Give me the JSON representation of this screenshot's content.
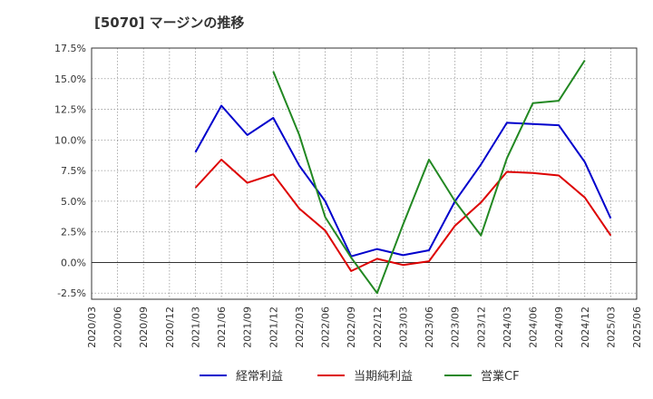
{
  "chart_data": {
    "type": "line",
    "title": "[5070]  マージンの推移",
    "xlabel": "",
    "ylabel": "",
    "x": [
      "2020/03",
      "2020/06",
      "2020/09",
      "2020/12",
      "2021/03",
      "2021/06",
      "2021/09",
      "2021/12",
      "2022/03",
      "2022/06",
      "2022/09",
      "2022/12",
      "2023/03",
      "2023/06",
      "2023/09",
      "2023/12",
      "2024/03",
      "2024/06",
      "2024/09",
      "2024/12",
      "2025/03",
      "2025/06"
    ],
    "y_tick_labels": [
      "17.5%",
      "15.0%",
      "12.5%",
      "10.0%",
      "7.5%",
      "5.0%",
      "2.5%",
      "0.0%",
      "-2.5%"
    ],
    "y_tick_values": [
      17.5,
      15.0,
      12.5,
      10.0,
      7.5,
      5.0,
      2.5,
      0.0,
      -2.5
    ],
    "ylim": [
      -3.0,
      17.5
    ],
    "grid": true,
    "legend_position": "bottom",
    "series": [
      {
        "name": "経常利益",
        "color": "#0000cc",
        "values": [
          null,
          null,
          null,
          null,
          9.0,
          12.8,
          10.4,
          11.8,
          7.9,
          5.0,
          0.5,
          1.1,
          0.6,
          1.0,
          5.0,
          8.0,
          11.4,
          11.3,
          11.2,
          8.2,
          3.6,
          null
        ]
      },
      {
        "name": "当期純利益",
        "color": "#dd0000",
        "values": [
          null,
          null,
          null,
          null,
          6.1,
          8.4,
          6.5,
          7.2,
          4.4,
          2.6,
          -0.7,
          0.3,
          -0.2,
          0.1,
          3.0,
          4.9,
          7.4,
          7.3,
          7.1,
          5.3,
          2.2,
          null
        ]
      },
      {
        "name": "営業CF",
        "color": "#228822",
        "values": [
          null,
          null,
          null,
          null,
          null,
          null,
          null,
          15.6,
          10.4,
          3.7,
          0.4,
          -2.5,
          3.1,
          8.4,
          5.0,
          2.2,
          8.5,
          13.0,
          13.2,
          16.5,
          null,
          null
        ]
      }
    ]
  }
}
